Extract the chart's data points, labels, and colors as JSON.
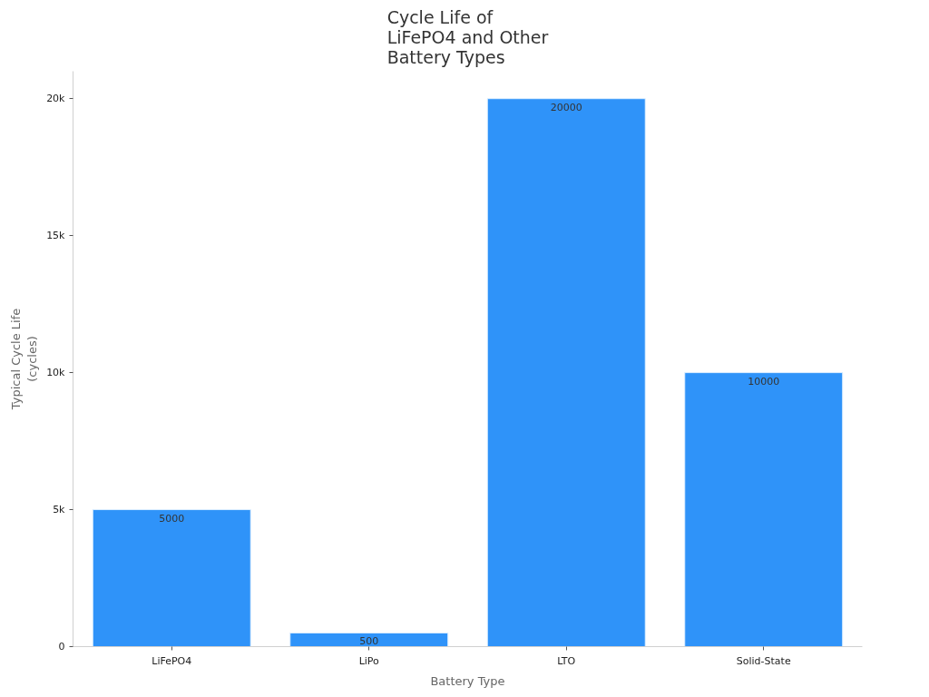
{
  "chart_data": {
    "type": "bar",
    "title": "Cycle Life of LiFePO4 and Other Battery Types",
    "xlabel": "Battery Type",
    "ylabel": "Typical Cycle Life (cycles)",
    "categories": [
      "LiFePO4",
      "LiPo",
      "LTO",
      "Solid-State"
    ],
    "values": [
      5000,
      500,
      20000,
      10000
    ],
    "color": "#2f93f9",
    "ylim": [
      0,
      21000
    ],
    "yticks": [
      0,
      {
        "value": 5000,
        "label": "5k"
      },
      {
        "value": 10000,
        "label": "10k"
      },
      {
        "value": 15000,
        "label": "15k"
      },
      {
        "value": 20000,
        "label": "20k"
      }
    ],
    "data_labels": true,
    "grid": false
  }
}
